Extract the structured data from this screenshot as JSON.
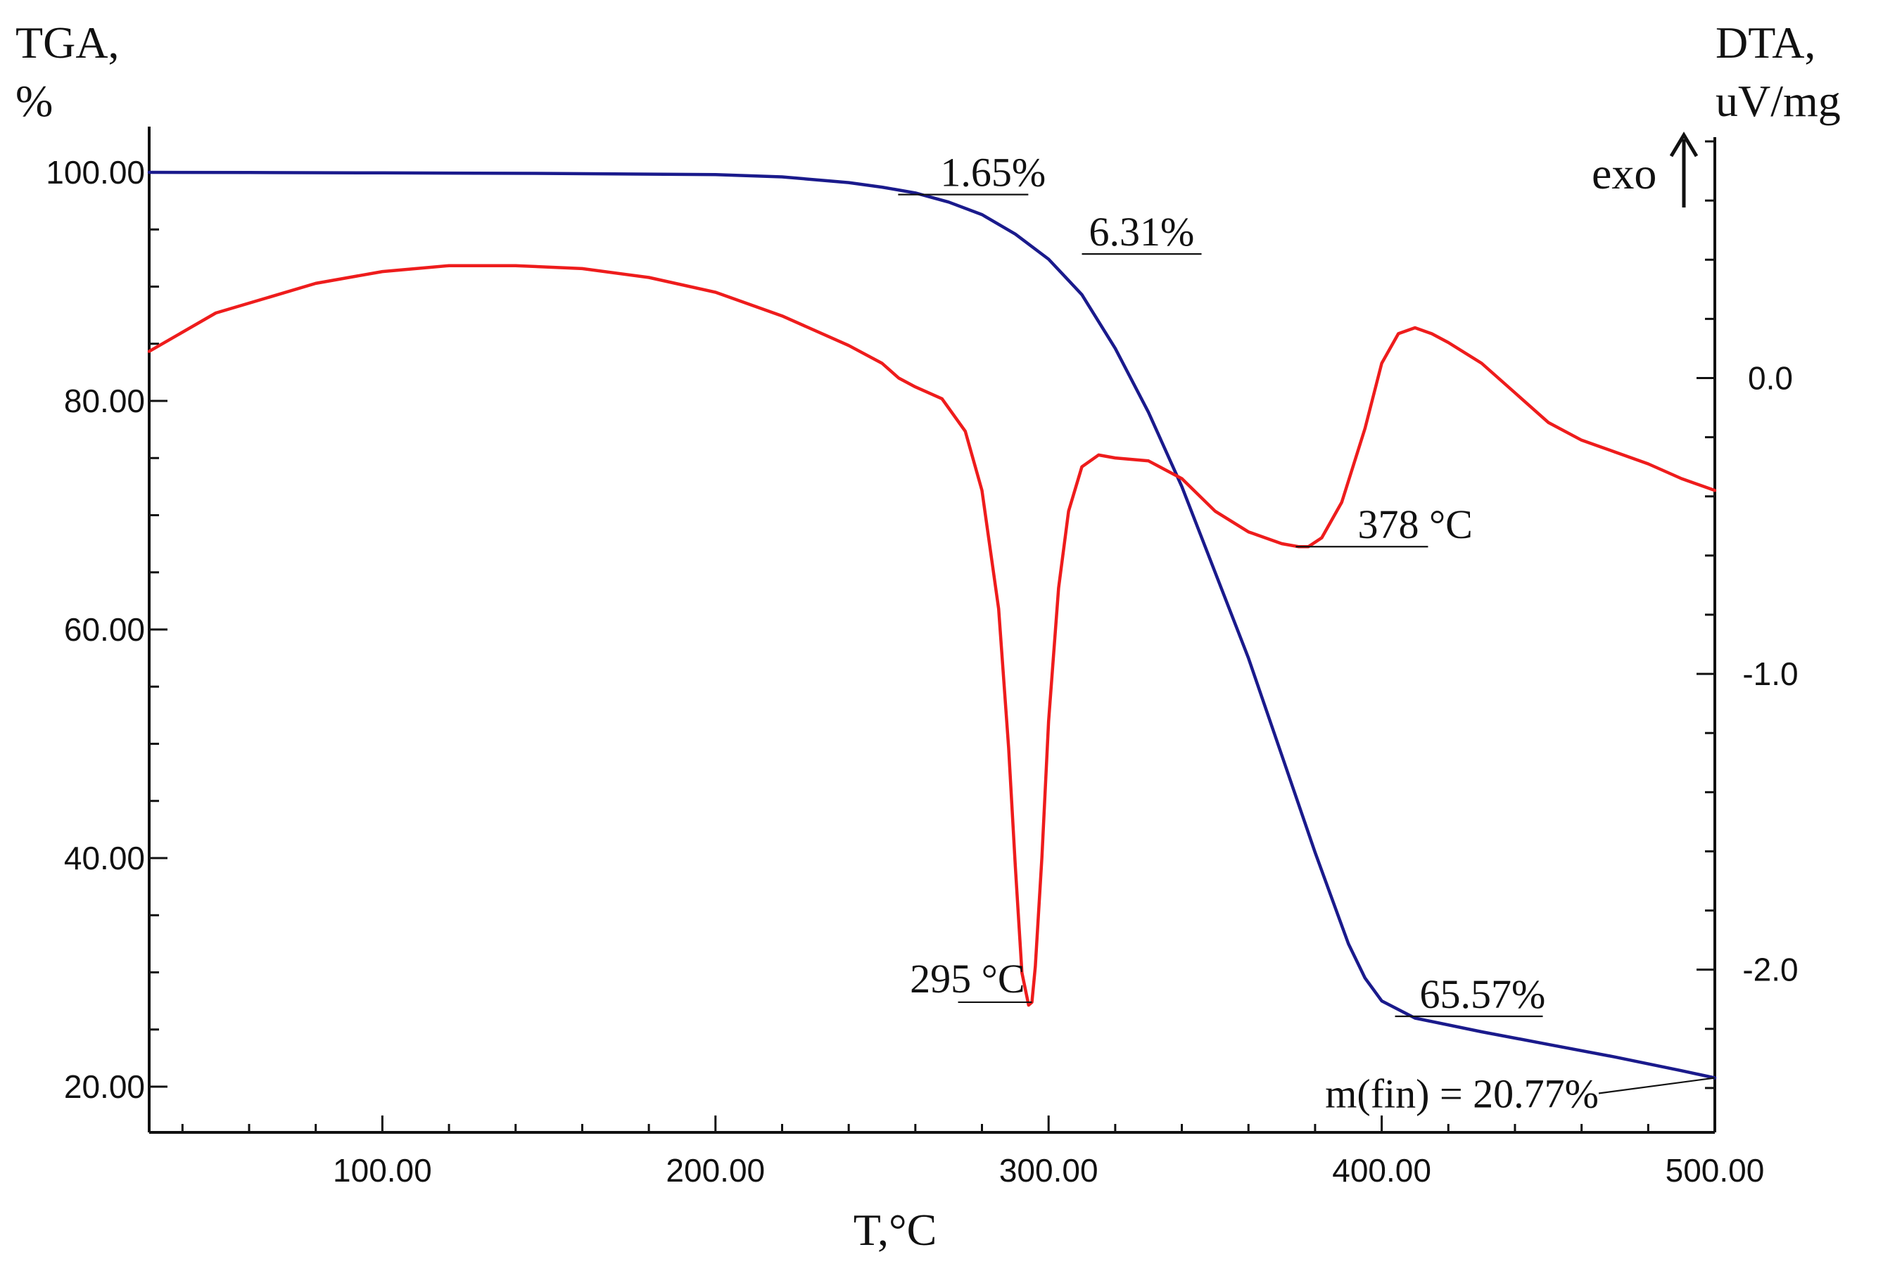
{
  "chart_data": {
    "type": "line",
    "title": "",
    "xlabel": "T,°C",
    "y_left_label_line1": "TGA,",
    "y_left_label_line2": "%",
    "y_right_label_line1": "DTA,",
    "y_right_label_line2": "uV/mg",
    "exo_label": "exo",
    "xlim": [
      30,
      500
    ],
    "ylim_left": [
      16,
      104
    ],
    "ylim_right": [
      -2.55,
      0.85
    ],
    "x_ticks": [
      100,
      200,
      300,
      400,
      500
    ],
    "x_tick_labels": [
      "100.00",
      "200.00",
      "300.00",
      "400.00",
      "500.00"
    ],
    "y_left_ticks": [
      20,
      40,
      60,
      80,
      100
    ],
    "y_left_tick_labels": [
      "20.00",
      "40.00",
      "60.00",
      "80.00",
      "100.00"
    ],
    "y_right_ticks": [
      0.0,
      -1.0,
      -2.0
    ],
    "y_right_tick_labels": [
      "0.0",
      "-1.0",
      "-2.0"
    ],
    "series": [
      {
        "name": "TGA",
        "axis": "left",
        "color": "#1a1a8c",
        "x": [
          30,
          60,
          100,
          150,
          200,
          220,
          240,
          250,
          260,
          270,
          280,
          290,
          300,
          310,
          320,
          330,
          340,
          350,
          360,
          370,
          380,
          390,
          395,
          400,
          410,
          430,
          450,
          470,
          490,
          500
        ],
        "y": [
          100.0,
          99.98,
          99.95,
          99.9,
          99.8,
          99.6,
          99.1,
          98.7,
          98.2,
          97.4,
          96.3,
          94.6,
          92.4,
          89.3,
          84.6,
          79.0,
          72.5,
          65.0,
          57.5,
          49.0,
          40.5,
          32.5,
          29.5,
          27.5,
          26.0,
          24.8,
          23.7,
          22.6,
          21.4,
          20.77
        ]
      },
      {
        "name": "DTA",
        "axis": "right",
        "color": "#ee1c1c",
        "x": [
          30,
          50,
          80,
          100,
          120,
          140,
          160,
          180,
          200,
          220,
          240,
          250,
          255,
          260,
          268,
          275,
          280,
          285,
          288,
          290,
          292,
          294,
          295,
          296,
          298,
          300,
          303,
          306,
          310,
          315,
          320,
          330,
          340,
          350,
          360,
          370,
          375,
          378,
          382,
          388,
          395,
          400,
          405,
          410,
          415,
          420,
          430,
          440,
          450,
          460,
          470,
          480,
          490,
          500
        ],
        "y": [
          0.09,
          0.22,
          0.32,
          0.36,
          0.38,
          0.38,
          0.37,
          0.34,
          0.29,
          0.21,
          0.11,
          0.05,
          0.0,
          -0.03,
          -0.07,
          -0.18,
          -0.38,
          -0.78,
          -1.25,
          -1.65,
          -2.01,
          -2.12,
          -2.11,
          -1.99,
          -1.62,
          -1.16,
          -0.71,
          -0.45,
          -0.3,
          -0.26,
          -0.27,
          -0.28,
          -0.34,
          -0.45,
          -0.52,
          -0.56,
          -0.57,
          -0.57,
          -0.54,
          -0.42,
          -0.17,
          0.05,
          0.15,
          0.17,
          0.15,
          0.12,
          0.05,
          -0.05,
          -0.15,
          -0.21,
          -0.25,
          -0.29,
          -0.34,
          -0.38
        ]
      }
    ],
    "annotations": [
      {
        "text": "1.65%",
        "x": 258,
        "y": 98.3,
        "axis": "left"
      },
      {
        "text": "6.31%",
        "x": 310,
        "y": 93.1,
        "axis": "left"
      },
      {
        "text": "295 °C",
        "x": 295,
        "y": -2.11,
        "axis": "right"
      },
      {
        "text": "378 °C",
        "x": 378,
        "y": -0.57,
        "axis": "right"
      },
      {
        "text": "65.57%",
        "x": 404,
        "y": 26.4,
        "axis": "left"
      },
      {
        "text": "m(fin) = 20.77%",
        "x": 500,
        "y": 20.77,
        "axis": "left"
      }
    ]
  }
}
